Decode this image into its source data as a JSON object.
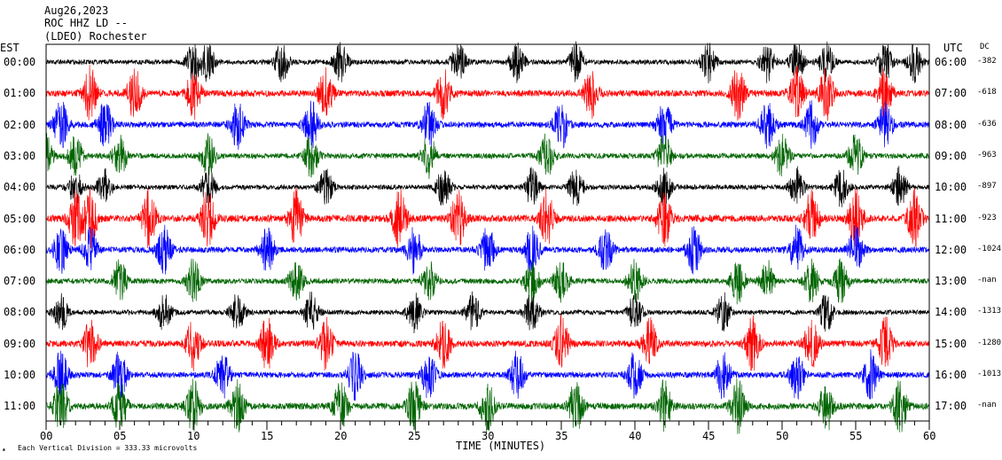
{
  "header": {
    "line1": "Aug26,2023",
    "line2": "ROC HHZ LD --",
    "line3": "(LDEO) Rochester"
  },
  "left_axis": {
    "title": "EST",
    "labels": [
      "00:00",
      "01:00",
      "02:00",
      "03:00",
      "04:00",
      "05:00",
      "06:00",
      "07:00",
      "08:00",
      "09:00",
      "10:00",
      "11:00"
    ]
  },
  "right_axis": {
    "title": "UTC",
    "labels": [
      "06:00",
      "07:00",
      "08:00",
      "09:00",
      "10:00",
      "11:00",
      "12:00",
      "13:00",
      "14:00",
      "15:00",
      "16:00",
      "17:00"
    ]
  },
  "dc": {
    "title": "DC",
    "values": [
      "-382",
      "-618",
      "-636",
      "-963",
      "-897",
      "-923",
      "-1024",
      "-nan",
      "-1313",
      "-1280",
      "-1013",
      "-nan"
    ]
  },
  "x_axis": {
    "label": "TIME (MINUTES)",
    "ticks": [
      "00",
      "05",
      "10",
      "15",
      "20",
      "25",
      "30",
      "35",
      "40",
      "45",
      "50",
      "55",
      "60"
    ]
  },
  "footer": {
    "icon": "station-icon",
    "scale_text": "Each Vertical Division = 333.33 microvolts"
  },
  "colors": {
    "trace_cycle": [
      "#000000",
      "#ff0000",
      "#0000ff",
      "#006400"
    ],
    "axis": "#000000",
    "background": "#ffffff"
  },
  "chart_data": {
    "type": "line",
    "title": "Aug26,2023 ROC HHZ LD -- (LDEO) Rochester",
    "xlabel": "TIME (MINUTES)",
    "ylabel": "",
    "xlim": [
      0,
      60
    ],
    "categories": [
      "00:00",
      "01:00",
      "02:00",
      "03:00",
      "04:00",
      "05:00",
      "06:00",
      "07:00",
      "08:00",
      "09:00",
      "10:00",
      "11:00"
    ],
    "series": [
      {
        "dc_offset": -382,
        "amplitude": 0.9,
        "color": "#000000",
        "burst_minutes": [
          10,
          11,
          16,
          20,
          28,
          32,
          36,
          45,
          49,
          51,
          53,
          57,
          59
        ]
      },
      {
        "dc_offset": -618,
        "amplitude": 1.2,
        "color": "#ff0000",
        "burst_minutes": [
          3,
          6,
          10,
          19,
          27,
          37,
          47,
          51,
          53,
          57
        ]
      },
      {
        "dc_offset": -636,
        "amplitude": 1.1,
        "color": "#0000ff",
        "burst_minutes": [
          1,
          4,
          13,
          18,
          26,
          35,
          42,
          49,
          52,
          57
        ]
      },
      {
        "dc_offset": -963,
        "amplitude": 1.0,
        "color": "#006400",
        "burst_minutes": [
          0,
          2,
          5,
          11,
          18,
          26,
          34,
          42,
          50,
          55
        ]
      },
      {
        "dc_offset": -897,
        "amplitude": 0.9,
        "color": "#000000",
        "burst_minutes": [
          2,
          4,
          11,
          19,
          27,
          33,
          36,
          42,
          51,
          54,
          58
        ]
      },
      {
        "dc_offset": -923,
        "amplitude": 1.3,
        "color": "#ff0000",
        "burst_minutes": [
          2,
          3,
          7,
          11,
          17,
          24,
          28,
          34,
          42,
          52,
          55,
          59
        ]
      },
      {
        "dc_offset": -1024,
        "amplitude": 1.1,
        "color": "#0000ff",
        "burst_minutes": [
          1,
          3,
          8,
          15,
          25,
          30,
          33,
          38,
          44,
          51,
          55
        ]
      },
      {
        "dc_offset": null,
        "amplitude": 1.0,
        "color": "#006400",
        "burst_minutes": [
          5,
          10,
          17,
          26,
          33,
          35,
          40,
          47,
          49,
          52,
          54
        ]
      },
      {
        "dc_offset": -1313,
        "amplitude": 0.9,
        "color": "#000000",
        "burst_minutes": [
          1,
          8,
          13,
          18,
          25,
          29,
          33,
          40,
          46,
          53
        ]
      },
      {
        "dc_offset": -1280,
        "amplitude": 1.2,
        "color": "#ff0000",
        "burst_minutes": [
          3,
          10,
          15,
          19,
          27,
          35,
          41,
          48,
          52,
          57
        ]
      },
      {
        "dc_offset": -1013,
        "amplitude": 1.1,
        "color": "#0000ff",
        "burst_minutes": [
          1,
          5,
          12,
          21,
          26,
          32,
          40,
          46,
          51,
          56
        ]
      },
      {
        "dc_offset": null,
        "amplitude": 1.2,
        "color": "#006400",
        "burst_minutes": [
          1,
          5,
          10,
          13,
          20,
          25,
          30,
          36,
          42,
          47,
          53,
          58
        ]
      }
    ]
  }
}
